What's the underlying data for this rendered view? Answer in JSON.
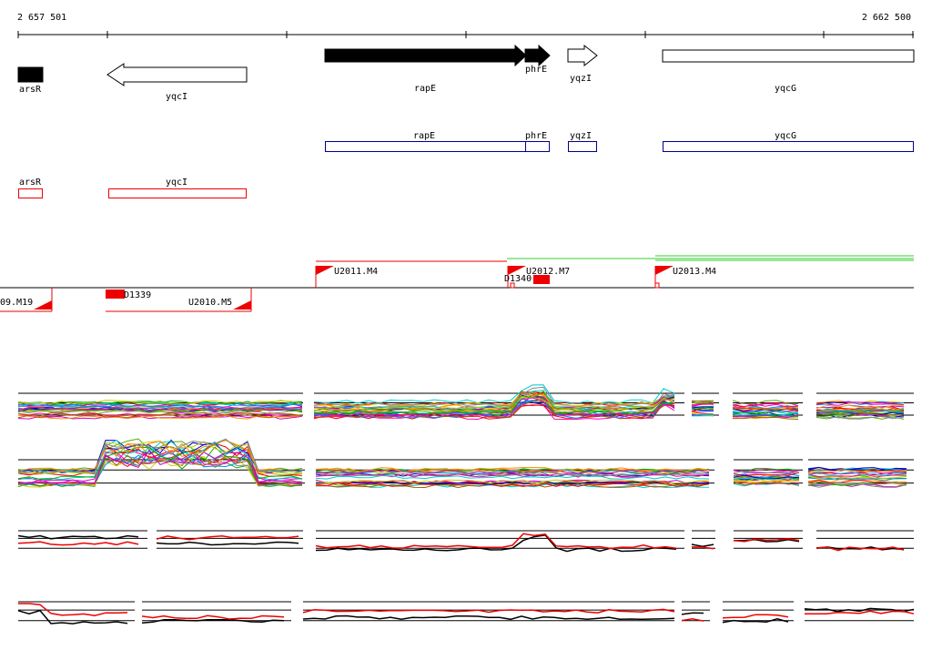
{
  "ruler": {
    "start": "2 657 501",
    "end": "2 662 500"
  },
  "genes": [
    {
      "label": "arsR"
    },
    {
      "label": "yqcI"
    },
    {
      "label": "rapE"
    },
    {
      "label": "phrE"
    },
    {
      "label": "yqzI"
    },
    {
      "label": "yqcG"
    }
  ],
  "blue_features": [
    "rapE",
    "phrE",
    "yqzI",
    "yqcG"
  ],
  "red_features": [
    "arsR",
    "yqcI"
  ],
  "segments": [
    "U2011.M4",
    "U2012.M7",
    "U2013.M4",
    "D1340",
    "09.M19",
    "D1339",
    "U2010.M5"
  ]
}
